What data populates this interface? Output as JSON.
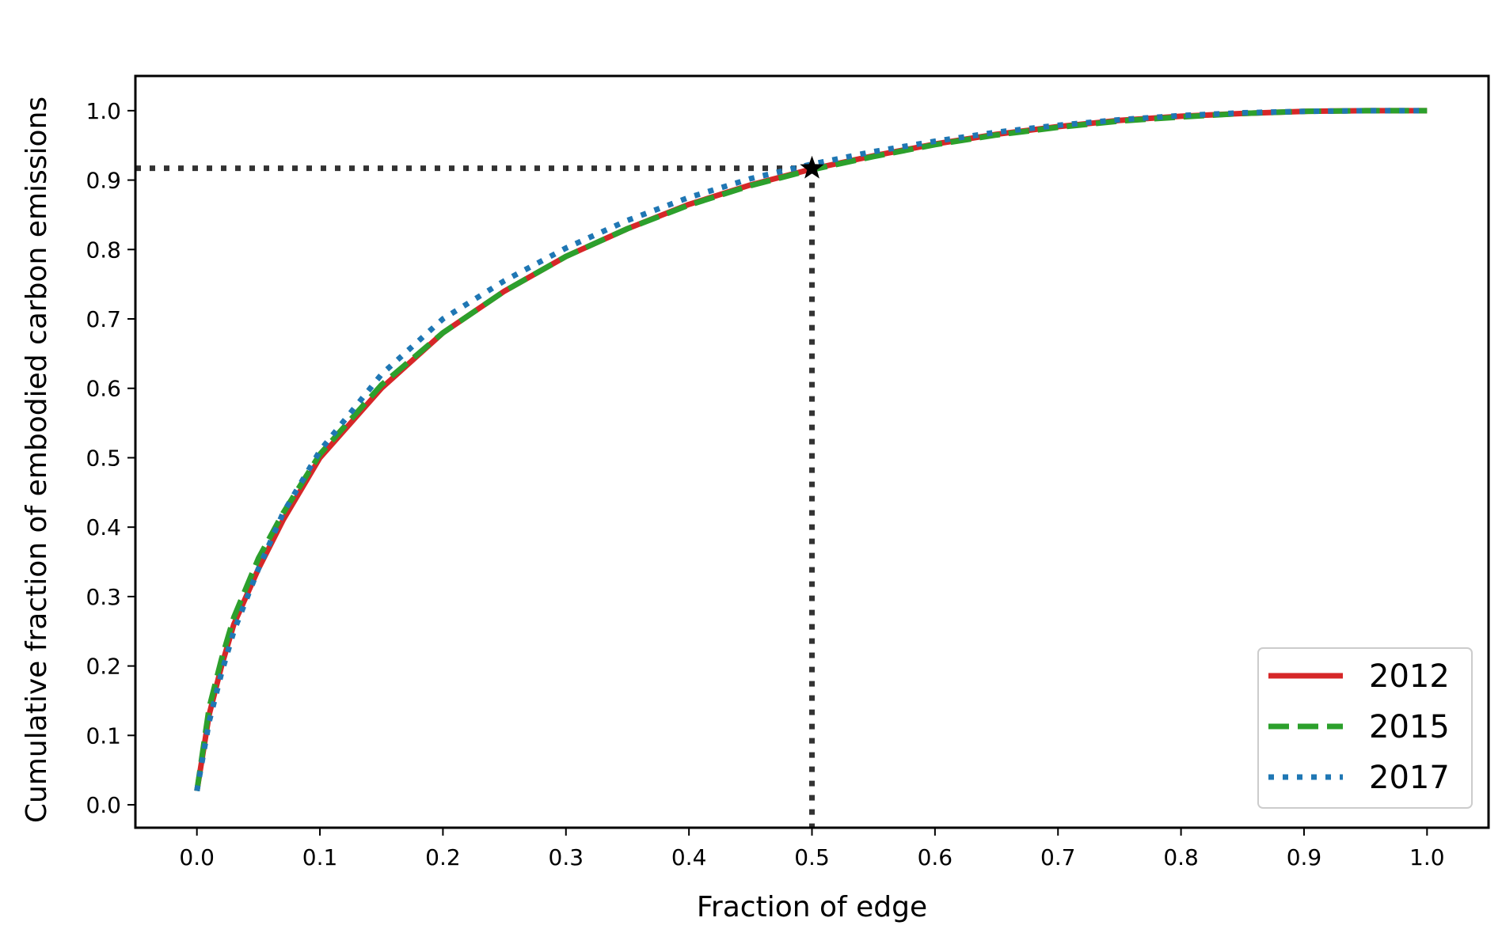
{
  "chart_data": {
    "type": "line",
    "xlabel": "Fraction of edge",
    "ylabel": "Cumulative fraction of embodied carbon emissions",
    "xlim": [
      -0.05,
      1.05
    ],
    "ylim": [
      -0.033,
      1.05
    ],
    "xticks": [
      "0.0",
      "0.1",
      "0.2",
      "0.3",
      "0.4",
      "0.5",
      "0.6",
      "0.7",
      "0.8",
      "0.9",
      "1.0"
    ],
    "yticks": [
      "0.0",
      "0.1",
      "0.2",
      "0.3",
      "0.4",
      "0.5",
      "0.6",
      "0.7",
      "0.8",
      "0.9",
      "1.0"
    ],
    "grid": false,
    "legend_position": "lower-right",
    "series": [
      {
        "name": "2012",
        "color": "#d62728",
        "style": "solid",
        "x": [
          0.0,
          0.01,
          0.02,
          0.03,
          0.05,
          0.07,
          0.1,
          0.15,
          0.2,
          0.25,
          0.3,
          0.35,
          0.4,
          0.45,
          0.5,
          0.55,
          0.6,
          0.65,
          0.7,
          0.75,
          0.8,
          0.85,
          0.9,
          0.95,
          1.0
        ],
        "y": [
          0.02,
          0.13,
          0.2,
          0.26,
          0.34,
          0.41,
          0.5,
          0.6,
          0.68,
          0.74,
          0.79,
          0.83,
          0.865,
          0.893,
          0.916,
          0.935,
          0.952,
          0.966,
          0.977,
          0.986,
          0.992,
          0.996,
          0.999,
          1.0,
          1.0
        ]
      },
      {
        "name": "2015",
        "color": "#2ca02c",
        "style": "dashed",
        "x": [
          0.0,
          0.01,
          0.02,
          0.03,
          0.05,
          0.07,
          0.1,
          0.15,
          0.2,
          0.25,
          0.3,
          0.35,
          0.4,
          0.45,
          0.5,
          0.55,
          0.6,
          0.65,
          0.7,
          0.75,
          0.8,
          0.85,
          0.9,
          0.95,
          1.0
        ],
        "y": [
          0.02,
          0.14,
          0.21,
          0.27,
          0.355,
          0.42,
          0.505,
          0.605,
          0.68,
          0.74,
          0.79,
          0.83,
          0.864,
          0.892,
          0.915,
          0.934,
          0.951,
          0.965,
          0.976,
          0.985,
          0.991,
          0.996,
          0.999,
          1.0,
          1.0
        ]
      },
      {
        "name": "2017",
        "color": "#1f77b4",
        "style": "dotted",
        "x": [
          0.0,
          0.01,
          0.02,
          0.03,
          0.05,
          0.07,
          0.1,
          0.15,
          0.2,
          0.25,
          0.3,
          0.35,
          0.4,
          0.45,
          0.5,
          0.55,
          0.6,
          0.65,
          0.7,
          0.75,
          0.8,
          0.85,
          0.9,
          0.95,
          1.0
        ],
        "y": [
          0.02,
          0.12,
          0.19,
          0.25,
          0.34,
          0.42,
          0.51,
          0.62,
          0.7,
          0.755,
          0.802,
          0.842,
          0.875,
          0.902,
          0.923,
          0.941,
          0.956,
          0.969,
          0.979,
          0.987,
          0.993,
          0.997,
          0.999,
          1.0,
          1.0
        ]
      }
    ],
    "reference": {
      "x": 0.5,
      "y": 0.917,
      "marker": "star",
      "line_style": "dotted",
      "line_color": "#333333"
    }
  }
}
